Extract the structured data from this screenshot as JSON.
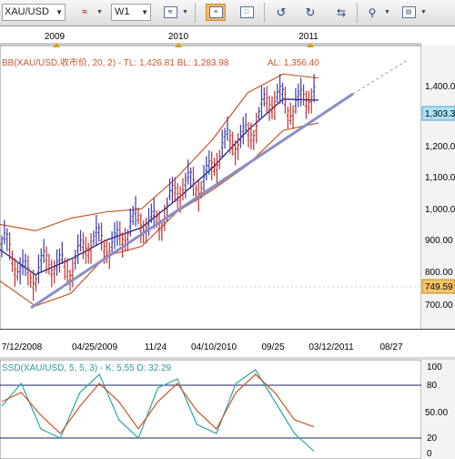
{
  "toolbar": {
    "symbol": "XAU/USD",
    "period": "W1",
    "tools": [
      "chart-settings-icon",
      "chart-type-icon",
      "bar-style-icon",
      "candle-style-icon",
      "zoom-in-icon",
      "zoom-out-icon",
      "scroll-icon",
      "magnifier-icon",
      "indicators-icon"
    ]
  },
  "price_chart": {
    "year_labels": [
      "2009",
      "2010",
      "2011"
    ],
    "legend": "BB(XAU/USD.收市价, 20, 2) - TL: 1,426.81  BL: 1,283.98",
    "line_label": "AL: 1,356.40",
    "current_price": "1,303.3",
    "marker_price": "749.59",
    "price_axis": [
      "1,400.00",
      "1,300.00",
      "1,200.00",
      "1,100.00",
      "1,000.00",
      "900.00",
      "800.00",
      "700.00"
    ],
    "date_axis": [
      "7/12/2008",
      "04/25/2009",
      "11/24",
      "04/10/2010",
      "09/25",
      "03/12/2011",
      "08/27"
    ],
    "colors": {
      "band": "#c8582a",
      "ma": "#1c1c8c",
      "trend": "#8a8fc7",
      "bar_up": "#3c3ca8",
      "bar_down": "#c03030",
      "price_tag": "#aee3f5",
      "marker_tag": "#f5c46a"
    }
  },
  "chart_data": [
    {
      "type": "line",
      "title": "BB(XAU/USD.收市价, 20, 2)",
      "x": [
        "2008-07-12",
        "2008-10-15",
        "2009-01-20",
        "2009-04-25",
        "2009-08-01",
        "2009-11-24",
        "2010-04-10",
        "2010-09-25",
        "2010-12-10",
        "2011-01-20"
      ],
      "series": [
        {
          "name": "TL",
          "values": [
            960,
            940,
            980,
            1000,
            1010,
            1110,
            1230,
            1380,
            1440,
            1426.81
          ]
        },
        {
          "name": "AL",
          "values": [
            880,
            800,
            850,
            910,
            950,
            1040,
            1140,
            1260,
            1360,
            1356.4
          ]
        },
        {
          "name": "BL",
          "values": [
            780,
            700,
            740,
            860,
            890,
            1000,
            1070,
            1150,
            1260,
            1283.98
          ]
        }
      ],
      "ylim": [
        640,
        1480
      ]
    },
    {
      "type": "line",
      "title": "SSD(XAU/USD, 5, 5, 3)",
      "series": [
        {
          "name": "K",
          "values": [
            55,
            80,
            30,
            20,
            70,
            90,
            40,
            20,
            75,
            85,
            35,
            25,
            80,
            95,
            60,
            25,
            5.55
          ]
        },
        {
          "name": "D",
          "values": [
            60,
            70,
            45,
            25,
            55,
            80,
            60,
            30,
            60,
            80,
            50,
            30,
            70,
            90,
            70,
            40,
            32.29
          ]
        }
      ],
      "ylim": [
        0,
        100
      ],
      "k_value": "5.55",
      "d_value": "32.29"
    }
  ],
  "stochastic": {
    "legend": "SSD(XAU/USD, 5, 5, 3) - K: 5.55  D: 32.29",
    "axis": [
      "100",
      "80",
      "50.00",
      "20",
      "0"
    ]
  }
}
